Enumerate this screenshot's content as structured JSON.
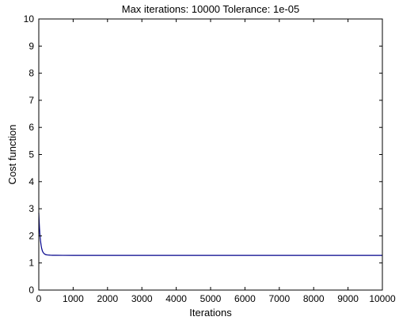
{
  "chart_data": {
    "type": "line",
    "title": "Max iterations: 10000 Tolerance: 1e-05",
    "xlabel": "Iterations",
    "ylabel": "Cost function",
    "xlim": [
      0,
      10000
    ],
    "ylim": [
      0,
      10
    ],
    "xticks": [
      0,
      1000,
      2000,
      3000,
      4000,
      5000,
      6000,
      7000,
      8000,
      9000,
      10000
    ],
    "yticks": [
      0,
      1,
      2,
      3,
      4,
      5,
      6,
      7,
      8,
      9,
      10
    ],
    "grid": false,
    "series": [
      {
        "color": "#00008b",
        "x": [
          0,
          10,
          20,
          30,
          40,
          50,
          60,
          70,
          80,
          100,
          120,
          150,
          180,
          210,
          250,
          300,
          350,
          400,
          500,
          700,
          1000,
          2000,
          4000,
          6000,
          8000,
          10000
        ],
        "y": [
          2.85,
          2.55,
          2.3,
          2.1,
          1.95,
          1.82,
          1.72,
          1.63,
          1.56,
          1.46,
          1.4,
          1.35,
          1.32,
          1.305,
          1.295,
          1.29,
          1.285,
          1.283,
          1.282,
          1.281,
          1.28,
          1.28,
          1.28,
          1.28,
          1.28,
          1.28
        ]
      }
    ]
  }
}
